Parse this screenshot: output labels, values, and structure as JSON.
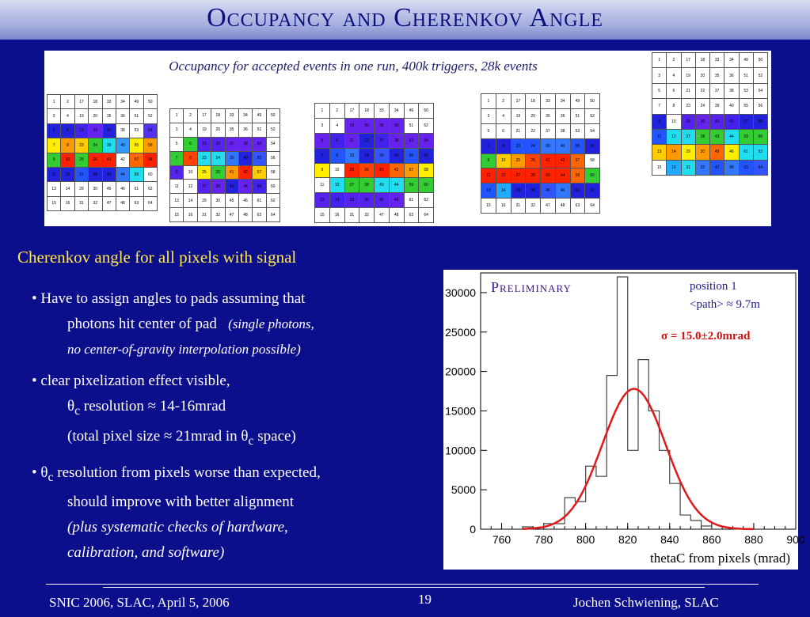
{
  "title": "Occupancy and Cherenkov Angle",
  "occupancy_caption": "Occupancy for accepted events in one run, 400k triggers, 28k events",
  "colors": {
    "background": "#0c0f8c",
    "heading": "#ffe84a",
    "fit": "#e01a1a",
    "sigma": "#d01010"
  },
  "grids": [
    {
      "rows": [
        [
          "1",
          "2",
          "17",
          "18",
          "33",
          "34",
          "49",
          "50"
        ],
        [
          "3",
          "4",
          "19",
          "20",
          "35",
          "36",
          "51",
          "52"
        ],
        [
          "5",
          "6",
          "21",
          "22",
          "37",
          "38",
          "53",
          "54"
        ],
        [
          "7",
          "8",
          "23",
          "24",
          "39",
          "40",
          "55",
          "56"
        ],
        [
          "9",
          "10",
          "25",
          "26",
          "41",
          "42",
          "57",
          "58"
        ],
        [
          "11",
          "12",
          "27",
          "28",
          "43",
          "44",
          "59",
          "60"
        ],
        [
          "13",
          "14",
          "29",
          "30",
          "45",
          "46",
          "61",
          "62"
        ],
        [
          "15",
          "16",
          "31",
          "32",
          "47",
          "48",
          "63",
          "64"
        ]
      ],
      "colors": [
        [
          "#fff",
          "#fff",
          "#fff",
          "#fff",
          "#fff",
          "#fff",
          "#fff",
          "#fff"
        ],
        [
          "#fff",
          "#fff",
          "#fff",
          "#fff",
          "#fff",
          "#fff",
          "#fff",
          "#fff"
        ],
        [
          "#2222dd",
          "#2222dd",
          "#4422ee",
          "#6622ee",
          "#2222dd",
          "#fff",
          "#fff",
          "#5533ee"
        ],
        [
          "#ffee00",
          "#ff9900",
          "#ffcc00",
          "#33cc33",
          "#22ddee",
          "#3399ff",
          "#ffee00",
          "#ff9900"
        ],
        [
          "#33cc33",
          "#ff2200",
          "#33cc33",
          "#ff2200",
          "#ff2200",
          "#fff",
          "#ff6600",
          "#ff2200"
        ],
        [
          "#2222dd",
          "#2222dd",
          "#2255ff",
          "#2222dd",
          "#2222dd",
          "#3377ff",
          "#22ddee",
          "#fff"
        ],
        [
          "#fff",
          "#fff",
          "#fff",
          "#fff",
          "#fff",
          "#fff",
          "#fff",
          "#fff"
        ],
        [
          "#fff",
          "#fff",
          "#fff",
          "#fff",
          "#fff",
          "#fff",
          "#fff",
          "#fff"
        ]
      ]
    },
    {
      "rows": [
        [
          "1",
          "2",
          "17",
          "18",
          "33",
          "34",
          "49",
          "50"
        ],
        [
          "3",
          "4",
          "19",
          "20",
          "35",
          "36",
          "51",
          "52"
        ],
        [
          "5",
          "6",
          "21",
          "22",
          "37",
          "38",
          "53",
          "54"
        ],
        [
          "7",
          "8",
          "23",
          "24",
          "39",
          "40",
          "55",
          "56"
        ],
        [
          "9",
          "10",
          "25",
          "26",
          "41",
          "42",
          "57",
          "58"
        ],
        [
          "11",
          "12",
          "27",
          "28",
          "43",
          "44",
          "59",
          "60"
        ],
        [
          "13",
          "14",
          "29",
          "30",
          "45",
          "46",
          "61",
          "62"
        ],
        [
          "15",
          "16",
          "31",
          "32",
          "47",
          "48",
          "63",
          "64"
        ]
      ],
      "colors": [
        [
          "#fff",
          "#fff",
          "#fff",
          "#fff",
          "#fff",
          "#fff",
          "#fff",
          "#fff"
        ],
        [
          "#fff",
          "#fff",
          "#fff",
          "#fff",
          "#fff",
          "#fff",
          "#fff",
          "#fff"
        ],
        [
          "#fff",
          "#33cc33",
          "#5522ee",
          "#5522ee",
          "#6622ee",
          "#6622ee",
          "#6622ee",
          "#fff"
        ],
        [
          "#33cc33",
          "#ff4400",
          "#22ddee",
          "#22ddee",
          "#3377ff",
          "#2222dd",
          "#3355ff",
          "#fff"
        ],
        [
          "#5522ee",
          "#fff",
          "#ffee00",
          "#33cc33",
          "#ff9900",
          "#ff2200",
          "#ffcc00",
          "#fff"
        ],
        [
          "#fff",
          "#fff",
          "#5522ee",
          "#6622ee",
          "#2222dd",
          "#6622ee",
          "#4422ee",
          "#fff"
        ],
        [
          "#fff",
          "#fff",
          "#fff",
          "#fff",
          "#fff",
          "#fff",
          "#fff",
          "#fff"
        ],
        [
          "#fff",
          "#fff",
          "#fff",
          "#fff",
          "#fff",
          "#fff",
          "#fff",
          "#fff"
        ]
      ]
    },
    {
      "rows": [
        [
          "1",
          "2",
          "17",
          "18",
          "33",
          "34",
          "49",
          "50"
        ],
        [
          "3",
          "4",
          "19",
          "20",
          "35",
          "36",
          "51",
          "52"
        ],
        [
          "5",
          "6",
          "21",
          "22",
          "37",
          "38",
          "53",
          "54"
        ],
        [
          "7",
          "8",
          "23",
          "24",
          "39",
          "40",
          "55",
          "56"
        ],
        [
          "9",
          "10",
          "25",
          "26",
          "41",
          "42",
          "57",
          "58"
        ],
        [
          "11",
          "12",
          "27",
          "28",
          "43",
          "44",
          "59",
          "60"
        ],
        [
          "13",
          "14",
          "29",
          "30",
          "45",
          "46",
          "61",
          "62"
        ],
        [
          "15",
          "16",
          "31",
          "32",
          "47",
          "48",
          "63",
          "64"
        ]
      ],
      "colors": [
        [
          "#fff",
          "#fff",
          "#fff",
          "#fff",
          "#fff",
          "#fff",
          "#fff",
          "#fff"
        ],
        [
          "#fff",
          "#fff",
          "#6622ee",
          "#6622ee",
          "#6622ee",
          "#6622ee",
          "#fff",
          "#fff"
        ],
        [
          "#6622ee",
          "#4422ee",
          "#6622ee",
          "#2222dd",
          "#4422ee",
          "#6622ee",
          "#6622ee",
          "#6622ee"
        ],
        [
          "#2222dd",
          "#2255ff",
          "#3377ff",
          "#2222dd",
          "#3355ff",
          "#2222dd",
          "#2255ff",
          "#2222dd"
        ],
        [
          "#ffee00",
          "#fff",
          "#ff2200",
          "#ff4400",
          "#ff2200",
          "#ff6600",
          "#ff9900",
          "#ffee00"
        ],
        [
          "#fff",
          "#22ddee",
          "#33cc33",
          "#33cc33",
          "#22ddee",
          "#22ddee",
          "#33cc33",
          "#33cc33"
        ],
        [
          "#5522ee",
          "#4422ee",
          "#5522ee",
          "#5522ee",
          "#5522ee",
          "#6622ee",
          "#fff",
          "#fff"
        ],
        [
          "#fff",
          "#fff",
          "#fff",
          "#fff",
          "#fff",
          "#fff",
          "#fff",
          "#fff"
        ]
      ]
    },
    {
      "rows": [
        [
          "1",
          "2",
          "17",
          "18",
          "33",
          "34",
          "49",
          "50"
        ],
        [
          "3",
          "4",
          "19",
          "20",
          "35",
          "36",
          "51",
          "52"
        ],
        [
          "5",
          "6",
          "21",
          "22",
          "37",
          "38",
          "53",
          "54"
        ],
        [
          "7",
          "8",
          "23",
          "24",
          "39",
          "40",
          "55",
          "56"
        ],
        [
          "9",
          "10",
          "25",
          "26",
          "41",
          "42",
          "57",
          "58"
        ],
        [
          "11",
          "12",
          "27",
          "28",
          "43",
          "44",
          "59",
          "60"
        ],
        [
          "13",
          "14",
          "29",
          "30",
          "45",
          "46",
          "61",
          "62"
        ],
        [
          "15",
          "16",
          "31",
          "32",
          "47",
          "48",
          "63",
          "64"
        ]
      ],
      "colors": [
        [
          "#fff",
          "#fff",
          "#fff",
          "#fff",
          "#fff",
          "#fff",
          "#fff",
          "#fff"
        ],
        [
          "#fff",
          "#fff",
          "#fff",
          "#fff",
          "#fff",
          "#fff",
          "#fff",
          "#fff"
        ],
        [
          "#fff",
          "#fff",
          "#fff",
          "#fff",
          "#fff",
          "#fff",
          "#fff",
          "#fff"
        ],
        [
          "#2222dd",
          "#2222dd",
          "#2255ff",
          "#2255ff",
          "#3377ff",
          "#3377ff",
          "#2255ff",
          "#2222dd"
        ],
        [
          "#33cc33",
          "#ffcc00",
          "#ff9900",
          "#ff4400",
          "#ff2200",
          "#ff2200",
          "#ff6600",
          "#fff"
        ],
        [
          "#ff2200",
          "#ff2200",
          "#ff2200",
          "#ff2200",
          "#ff2200",
          "#ff2200",
          "#ff6600",
          "#33cc33"
        ],
        [
          "#2255ff",
          "#22aaff",
          "#2222dd",
          "#2222dd",
          "#3355ff",
          "#3377ff",
          "#2222dd",
          "#2222dd"
        ],
        [
          "#fff",
          "#fff",
          "#fff",
          "#fff",
          "#fff",
          "#fff",
          "#fff",
          "#fff"
        ]
      ]
    },
    {
      "rows": [
        [
          "1",
          "2",
          "17",
          "18",
          "33",
          "34",
          "49",
          "50"
        ],
        [
          "3",
          "4",
          "19",
          "20",
          "35",
          "36",
          "51",
          "52"
        ],
        [
          "5",
          "6",
          "21",
          "22",
          "37",
          "38",
          "53",
          "54"
        ],
        [
          "7",
          "8",
          "23",
          "24",
          "39",
          "40",
          "55",
          "56"
        ],
        [
          "9",
          "10",
          "25",
          "26",
          "41",
          "42",
          "57",
          "58"
        ],
        [
          "11",
          "12",
          "27",
          "28",
          "43",
          "44",
          "59",
          "60"
        ],
        [
          "13",
          "14",
          "29",
          "30",
          "45",
          "46",
          "61",
          "62"
        ],
        [
          "15",
          "16",
          "31",
          "32",
          "47",
          "48",
          "63",
          "64"
        ]
      ],
      "colors": [
        [
          "#fff",
          "#fff",
          "#fff",
          "#fff",
          "#fff",
          "#fff",
          "#fff",
          "#fff"
        ],
        [
          "#fff",
          "#fff",
          "#fff",
          "#fff",
          "#fff",
          "#fff",
          "#fff",
          "#fff"
        ],
        [
          "#fff",
          "#fff",
          "#fff",
          "#fff",
          "#fff",
          "#fff",
          "#fff",
          "#fff"
        ],
        [
          "#fff",
          "#fff",
          "#fff",
          "#fff",
          "#fff",
          "#fff",
          "#fff",
          "#fff"
        ],
        [
          "#2222dd",
          "#fff",
          "#5522ee",
          "#6622ee",
          "#5522ee",
          "#4422ee",
          "#2222dd",
          "#2222dd"
        ],
        [
          "#2255ff",
          "#22ddee",
          "#22ddee",
          "#33cc33",
          "#33cc33",
          "#22ddee",
          "#33cc33",
          "#33cc33"
        ],
        [
          "#ffcc00",
          "#ff9900",
          "#ffee00",
          "#ff9900",
          "#ff6600",
          "#ffee00",
          "#22ddee",
          "#22ddee"
        ],
        [
          "#fff",
          "#22aaff",
          "#22ddee",
          "#3377ff",
          "#2255ff",
          "#3377ff",
          "#2255ff",
          "#3355ff"
        ]
      ]
    }
  ],
  "section_heading": "Cherenkov angle for all pixels with signal",
  "bullets": {
    "b1_line1": "• Have to assign angles to pads assuming that",
    "b1_line2": "photons hit center of pad",
    "b1_note1": "(single photons,",
    "b1_note2": "no center-of-gravity interpolation possible)",
    "b2_line1": "• clear pixelization effect visible,",
    "b2_theta": "θ",
    "b2_sub": "c",
    "b2_line2": " resolution ≈ 14-16mrad",
    "b2_line3a": "(total pixel size ≈ 21mrad in θ",
    "b2_line3sub": "c",
    "b2_line3b": " space)",
    "b3_bullet": "• θ",
    "b3_sub": "c",
    "b3_line1": " resolution from pixels worse than expected,",
    "b3_line2": "should improve with better alignment",
    "b3_line3": "(plus systematic checks of hardware,",
    "b3_line4": "calibration, and software)"
  },
  "chart_data": {
    "type": "bar",
    "xlabel": "thetaC from pixels (mrad)",
    "xlim": [
      750,
      900
    ],
    "ylim": [
      0,
      32500
    ],
    "x_ticks": [
      760,
      780,
      800,
      820,
      840,
      860,
      880,
      900
    ],
    "y_ticks": [
      0,
      5000,
      10000,
      15000,
      20000,
      25000,
      30000
    ],
    "bin_edges": [
      770,
      775,
      780,
      785,
      790,
      795,
      800,
      805,
      810,
      815,
      820,
      825,
      830,
      835,
      840,
      845,
      850,
      855,
      860
    ],
    "values": [
      300,
      200,
      700,
      700,
      4000,
      3500,
      8000,
      6700,
      19500,
      32000,
      10000,
      21500,
      15000,
      10000,
      5800,
      1800,
      1100,
      400
    ],
    "fit": {
      "mean": 823,
      "sigma": 15.0,
      "amplitude": 17800
    },
    "annotations": {
      "preliminary": "Preliminary",
      "position": "position 1",
      "path": "<path> ≈ 9.7m",
      "sigma": "σ = 15.0±2.0mrad"
    }
  },
  "footer": {
    "left": "SNIC 2006, SLAC, April 5, 2006",
    "page": "19",
    "right": "Jochen Schwiening, SLAC"
  }
}
